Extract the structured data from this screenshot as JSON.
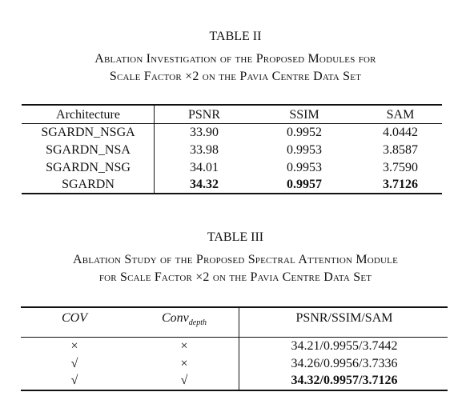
{
  "tables": [
    {
      "title": "TABLE II",
      "caption": [
        "Ablation Investigation of the Proposed Modules for",
        "Scale Factor ×2 on the Pavia Centre Data Set"
      ],
      "header": [
        "Architecture",
        "PSNR",
        "SSIM",
        "SAM"
      ],
      "rows": [
        [
          "SGARDN_NSGA",
          "33.90",
          "0.9952",
          "4.0442"
        ],
        [
          "SGARDN_NSA",
          "33.98",
          "0.9953",
          "3.8587"
        ],
        [
          "SGARDN_NSG",
          "34.01",
          "0.9953",
          "3.7590"
        ],
        [
          "SGARDN",
          "34.32",
          "0.9957",
          "3.7126"
        ]
      ]
    },
    {
      "title": "TABLE III",
      "caption": [
        "Ablation Study of the Proposed Spectral Attention Module",
        "for Scale Factor ×2 on the Pavia Centre Data Set"
      ],
      "header": [
        "COV",
        "Conv",
        "PSNR/SSIM/SAM"
      ],
      "header_subscript": "depth",
      "rows": [
        [
          "×",
          "×",
          "34.21/0.9955/3.7442"
        ],
        [
          "√",
          "×",
          "34.26/0.9956/3.7336"
        ],
        [
          "√",
          "√",
          "34.32/0.9957/3.7126"
        ]
      ]
    }
  ]
}
